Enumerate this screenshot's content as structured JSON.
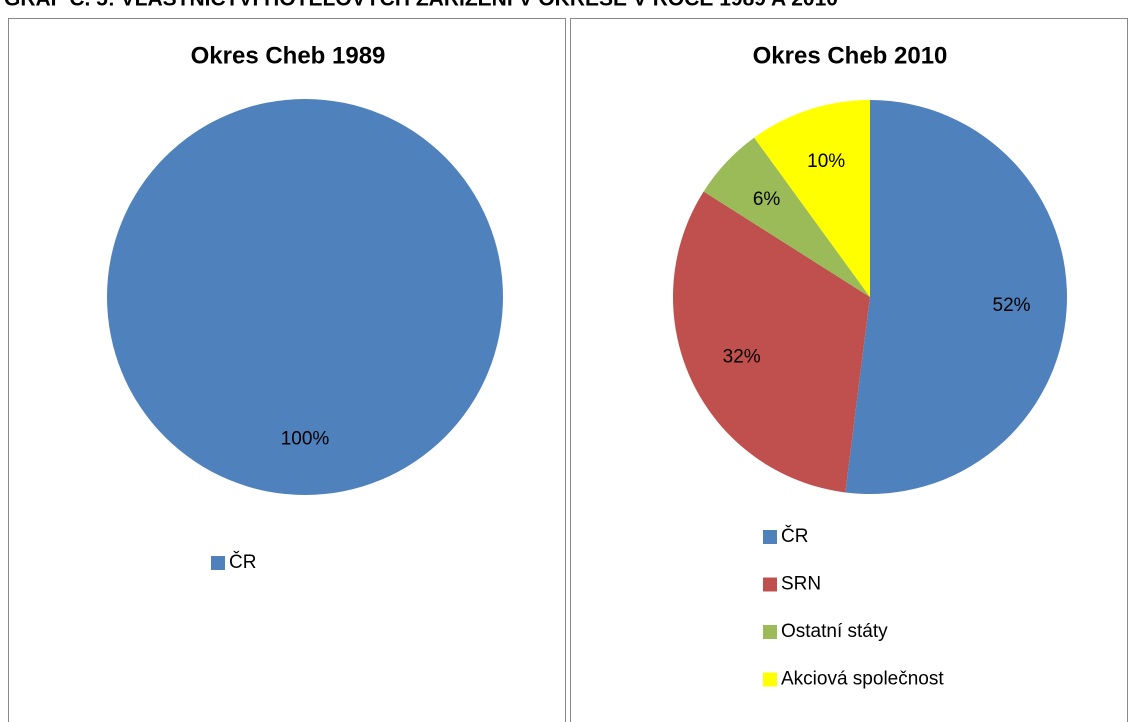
{
  "title": "GRAF Č. 5: VLASTNICTVÍ HOTELOVÝCH ZAŘÍZENÍ V OKRESE V ROCE 1989 A 2010",
  "chart_data": [
    {
      "type": "pie",
      "title": "Okres Cheb 1989",
      "categories": [
        "ČR"
      ],
      "values": [
        100
      ],
      "value_labels": [
        "100%"
      ],
      "colors": [
        "#4f81bd"
      ],
      "legend": "bottom"
    },
    {
      "type": "pie",
      "title": "Okres Cheb 2010",
      "categories": [
        "ČR",
        "SRN",
        "Ostatní státy",
        "Akciová společnost"
      ],
      "values": [
        52,
        32,
        6,
        10
      ],
      "value_labels": [
        "52%",
        "32%",
        "6%",
        "10%"
      ],
      "colors": [
        "#4f81bd",
        "#c0504d",
        "#9bbb59",
        "#ffff00"
      ],
      "legend": "bottom"
    }
  ]
}
